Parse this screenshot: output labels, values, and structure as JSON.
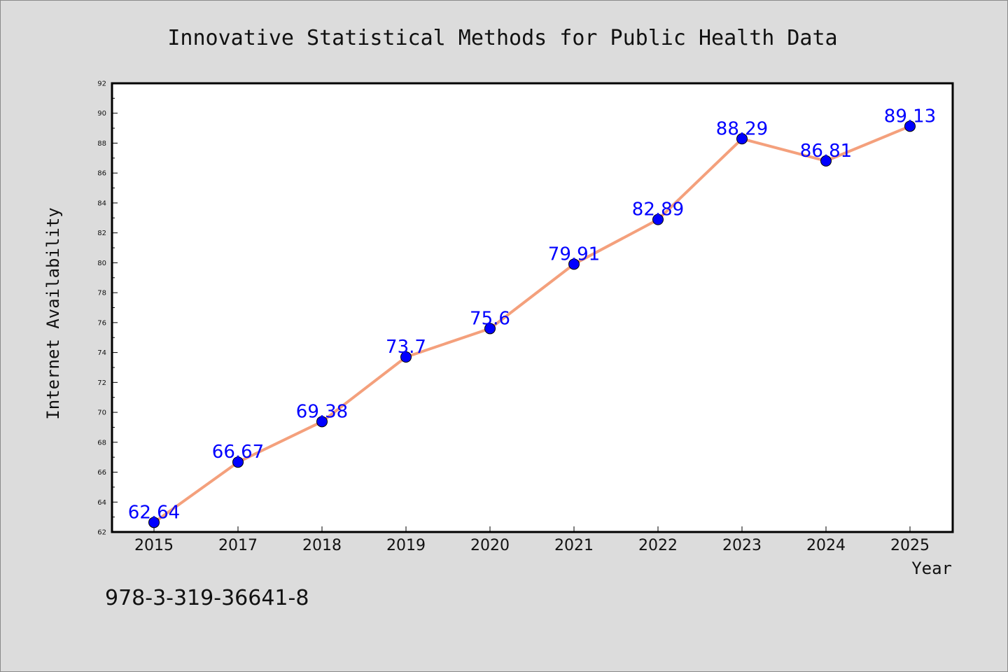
{
  "colors": {
    "background": "#dcdcdc",
    "plot_background": "#ffffff",
    "line": "#f4a07c",
    "marker": "#0000ff",
    "data_label": "#0000ff"
  },
  "footer": {
    "isbn": "978-3-319-36641-8"
  },
  "chart_data": {
    "type": "line",
    "title": "Innovative Statistical Methods for Public Health Data",
    "xlabel": "Year",
    "ylabel": "Internet Availability",
    "categories": [
      "2015",
      "2017",
      "2018",
      "2019",
      "2020",
      "2021",
      "2022",
      "2023",
      "2024",
      "2025"
    ],
    "values": [
      62.64,
      66.67,
      69.38,
      73.7,
      75.6,
      79.91,
      82.89,
      88.29,
      86.81,
      89.13
    ],
    "data_labels": [
      "62.64",
      "66.67",
      "69.38",
      "73.7",
      "75.6",
      "79.91",
      "82.89",
      "88.29",
      "86.81",
      "89.13"
    ],
    "ylim": [
      62,
      92
    ],
    "yticks": [
      62,
      64,
      66,
      68,
      70,
      72,
      74,
      76,
      78,
      80,
      82,
      84,
      86,
      88,
      90,
      92
    ],
    "grid": false,
    "legend": "none"
  }
}
